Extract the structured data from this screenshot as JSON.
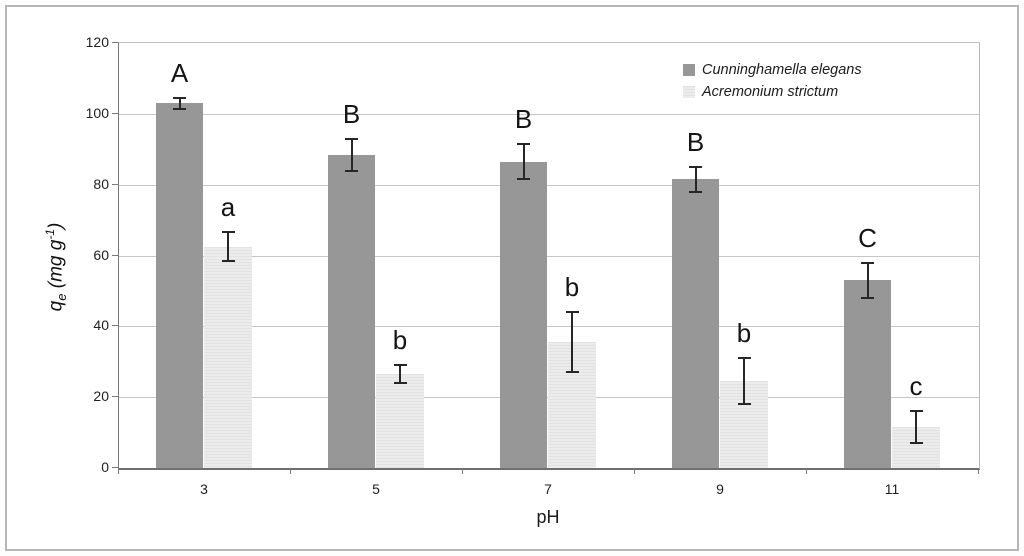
{
  "chart_data": {
    "type": "bar",
    "title": "",
    "xlabel": "pH",
    "ylabel": "qe (mg g-1)",
    "ylabel_parts": {
      "variable": "q",
      "subscript": "e",
      "unit": " (mg g",
      "exponent": "-1",
      "close": ")"
    },
    "categories": [
      "3",
      "5",
      "7",
      "9",
      "11"
    ],
    "series": [
      {
        "name": "Cunninghamella elegans",
        "color": "#979797",
        "values": [
          103,
          88.5,
          86.5,
          81.5,
          53
        ],
        "errors": [
          1.5,
          4.5,
          5,
          3.5,
          5
        ],
        "labels": [
          "A",
          "B",
          "B",
          "B",
          "C"
        ]
      },
      {
        "name": "Acremonium strictum",
        "color": "#ececec",
        "values": [
          62.5,
          26.5,
          35.5,
          24.5,
          11.5
        ],
        "errors": [
          4,
          2.5,
          8.5,
          6.5,
          4.5
        ],
        "labels": [
          "a",
          "b",
          "b",
          "b",
          "c"
        ]
      }
    ],
    "ylim": [
      0,
      120
    ],
    "yticks": [
      0,
      20,
      40,
      60,
      80,
      100,
      120
    ],
    "grid": "horizontal",
    "legend_position": "top-right",
    "colors": {
      "gridline": "#c6c6c6",
      "axis": "#6f6f6f",
      "error_bar": "#262626",
      "frame_border": "#b6b6b6"
    }
  }
}
